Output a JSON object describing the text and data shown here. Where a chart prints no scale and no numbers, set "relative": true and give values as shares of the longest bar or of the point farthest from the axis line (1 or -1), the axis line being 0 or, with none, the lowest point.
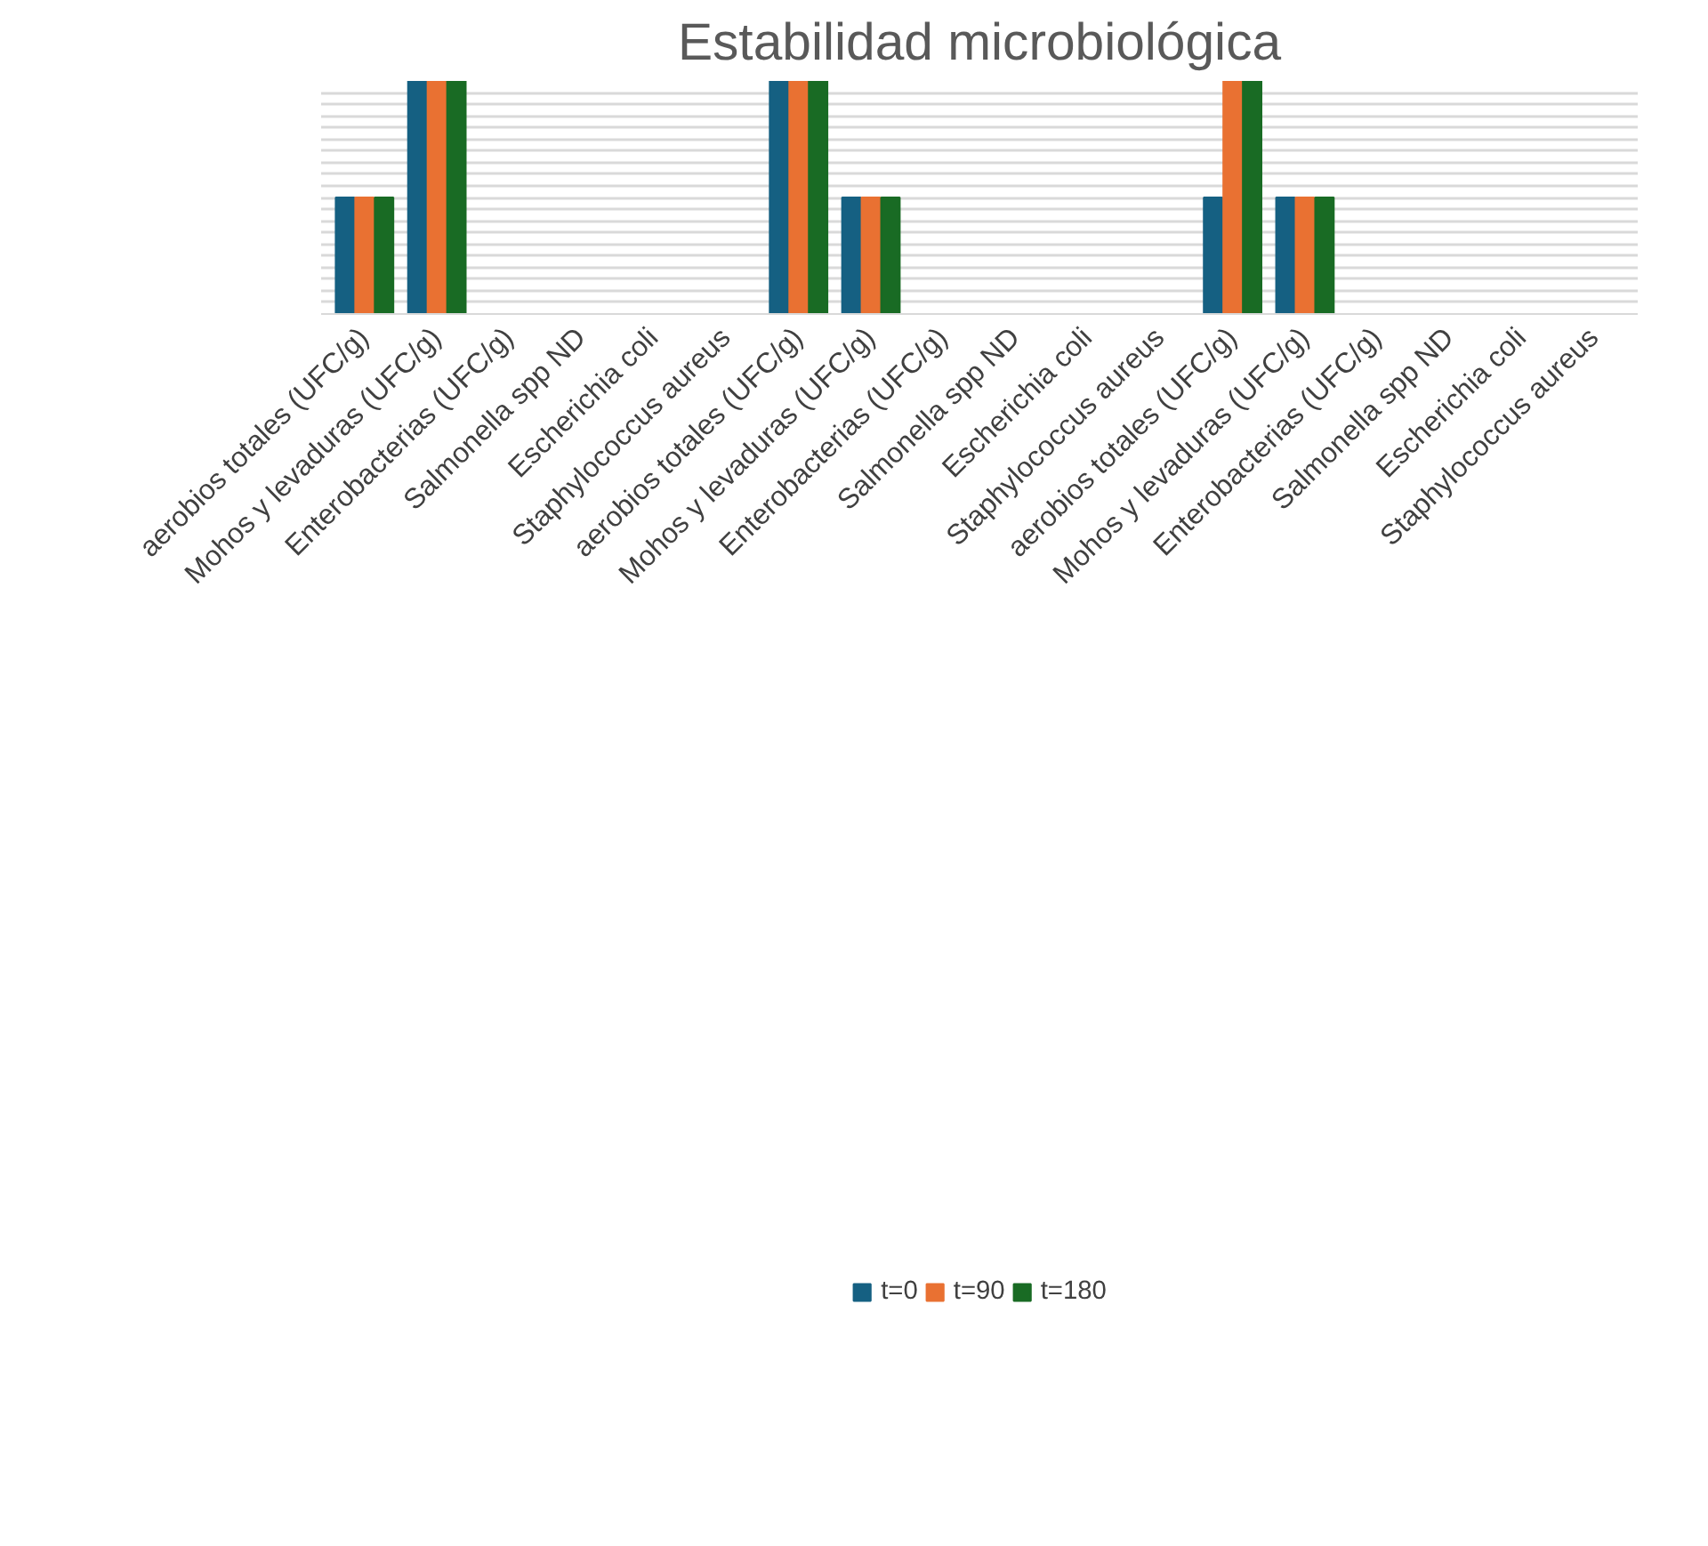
{
  "chart_data": {
    "type": "bar",
    "title": "Estabilidad microbiológica",
    "relative": true,
    "grid": "y",
    "legend": "bottom",
    "categories": [
      "aerobios totales (UFC/g)",
      "Mohos y levaduras (UFC/g)",
      "Enterobacterias (UFC/g)",
      "Salmonella spp ND",
      "Escherichia coli",
      "Staphylococcus aureus",
      "aerobios totales (UFC/g)",
      "Mohos y levaduras (UFC/g)",
      "Enterobacterias (UFC/g)",
      "Salmonella spp ND",
      "Escherichia coli",
      "Staphylococcus aureus",
      "aerobios totales (UFC/g)",
      "Mohos y levaduras (UFC/g)",
      "Enterobacterias (UFC/g)",
      "Salmonella spp ND",
      "Escherichia coli",
      "Staphylococcus aureus"
    ],
    "series": [
      {
        "name": "t=0",
        "color": "#156082",
        "values": [
          0.5,
          1,
          0,
          0,
          0,
          0,
          1,
          0.5,
          0,
          0,
          0,
          0,
          0.5,
          0.5,
          0,
          0,
          0,
          0
        ]
      },
      {
        "name": "t=90",
        "color": "#e97132",
        "values": [
          0.5,
          1,
          0,
          0,
          0,
          0,
          1,
          0.5,
          0,
          0,
          0,
          0,
          1,
          0.5,
          0,
          0,
          0,
          0
        ]
      },
      {
        "name": "t=180",
        "color": "#196b24",
        "values": [
          0.5,
          1,
          0,
          0,
          0,
          0,
          1,
          0.5,
          0,
          0,
          0,
          0,
          1,
          0.5,
          0,
          0,
          0,
          0
        ]
      }
    ]
  }
}
